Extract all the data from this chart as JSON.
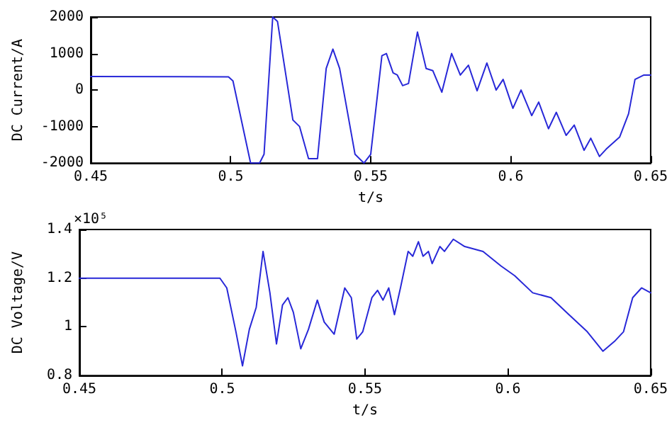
{
  "chart_data": [
    {
      "type": "line",
      "xlabel": "t/s",
      "ylabel": "DC Current/A",
      "xlim": [
        0.45,
        0.65
      ],
      "xticks": [
        0.45,
        0.5,
        0.55,
        0.6,
        0.65
      ],
      "ylim": [
        -2000,
        2000
      ],
      "yticks": [
        -2000,
        -1000,
        0,
        1000,
        2000
      ],
      "marker": "none",
      "line_style": "solid",
      "x": [
        0.45,
        0.4992,
        0.5008,
        0.5071,
        0.5103,
        0.5119,
        0.515,
        0.5167,
        0.5222,
        0.5246,
        0.5278,
        0.531,
        0.5341,
        0.5365,
        0.5389,
        0.5444,
        0.5476,
        0.55,
        0.554,
        0.5556,
        0.558,
        0.5595,
        0.5614,
        0.5635,
        0.5667,
        0.5698,
        0.5722,
        0.5754,
        0.5789,
        0.582,
        0.5849,
        0.588,
        0.5915,
        0.5948,
        0.5973,
        0.6008,
        0.6037,
        0.6075,
        0.61,
        0.6135,
        0.6163,
        0.6198,
        0.6227,
        0.6262,
        0.6286,
        0.6317,
        0.6341,
        0.6389,
        0.6421,
        0.6444,
        0.6476,
        0.65
      ],
      "series": [
        {
          "color": "#2828d8",
          "values": [
            370,
            360,
            250,
            -2000,
            -2000,
            -1760,
            2000,
            1880,
            -820,
            -1000,
            -1880,
            -1880,
            590,
            1120,
            590,
            -1760,
            -2000,
            -1760,
            940,
            1000,
            470,
            410,
            120,
            180,
            1590,
            590,
            530,
            -60,
            1000,
            410,
            680,
            -20,
            740,
            0,
            290,
            -500,
            0,
            -700,
            -330,
            -1060,
            -610,
            -1240,
            -960,
            -1650,
            -1320,
            -1820,
            -1620,
            -1290,
            -650,
            290,
            410,
            410
          ]
        }
      ]
    },
    {
      "type": "line",
      "xlabel": "t/s",
      "ylabel": "DC Voltage/V",
      "annotations": [
        "×10⁵"
      ],
      "xlim": [
        0.45,
        0.65
      ],
      "xticks": [
        0.45,
        0.5,
        0.55,
        0.6,
        0.65
      ],
      "ylim": [
        0.8,
        1.4
      ],
      "yticks": [
        0.8,
        1,
        1.2,
        1.4
      ],
      "marker": "none",
      "line_style": "solid",
      "x": [
        0.45,
        0.4992,
        0.5016,
        0.5048,
        0.5071,
        0.5095,
        0.5119,
        0.5143,
        0.5167,
        0.519,
        0.5211,
        0.523,
        0.5249,
        0.5275,
        0.5302,
        0.5333,
        0.5357,
        0.5392,
        0.5429,
        0.5452,
        0.5471,
        0.5492,
        0.5524,
        0.5544,
        0.5563,
        0.5583,
        0.5603,
        0.5624,
        0.5651,
        0.5667,
        0.5687,
        0.5703,
        0.5722,
        0.5735,
        0.5762,
        0.5778,
        0.5809,
        0.5849,
        0.5913,
        0.5976,
        0.6024,
        0.6087,
        0.6151,
        0.6214,
        0.6278,
        0.6333,
        0.6373,
        0.6405,
        0.6437,
        0.6468,
        0.65
      ],
      "series": [
        {
          "color": "#2828d8",
          "values": [
            1.2,
            1.2,
            1.16,
            0.98,
            0.84,
            0.99,
            1.08,
            1.31,
            1.14,
            0.93,
            1.09,
            1.12,
            1.06,
            0.91,
            0.99,
            1.11,
            1.02,
            0.97,
            1.16,
            1.12,
            0.95,
            0.98,
            1.12,
            1.15,
            1.11,
            1.16,
            1.05,
            1.16,
            1.31,
            1.29,
            1.35,
            1.29,
            1.31,
            1.26,
            1.33,
            1.31,
            1.36,
            1.33,
            1.31,
            1.25,
            1.21,
            1.14,
            1.12,
            1.05,
            0.98,
            0.9,
            0.94,
            0.98,
            1.12,
            1.16,
            1.14
          ]
        }
      ]
    }
  ]
}
